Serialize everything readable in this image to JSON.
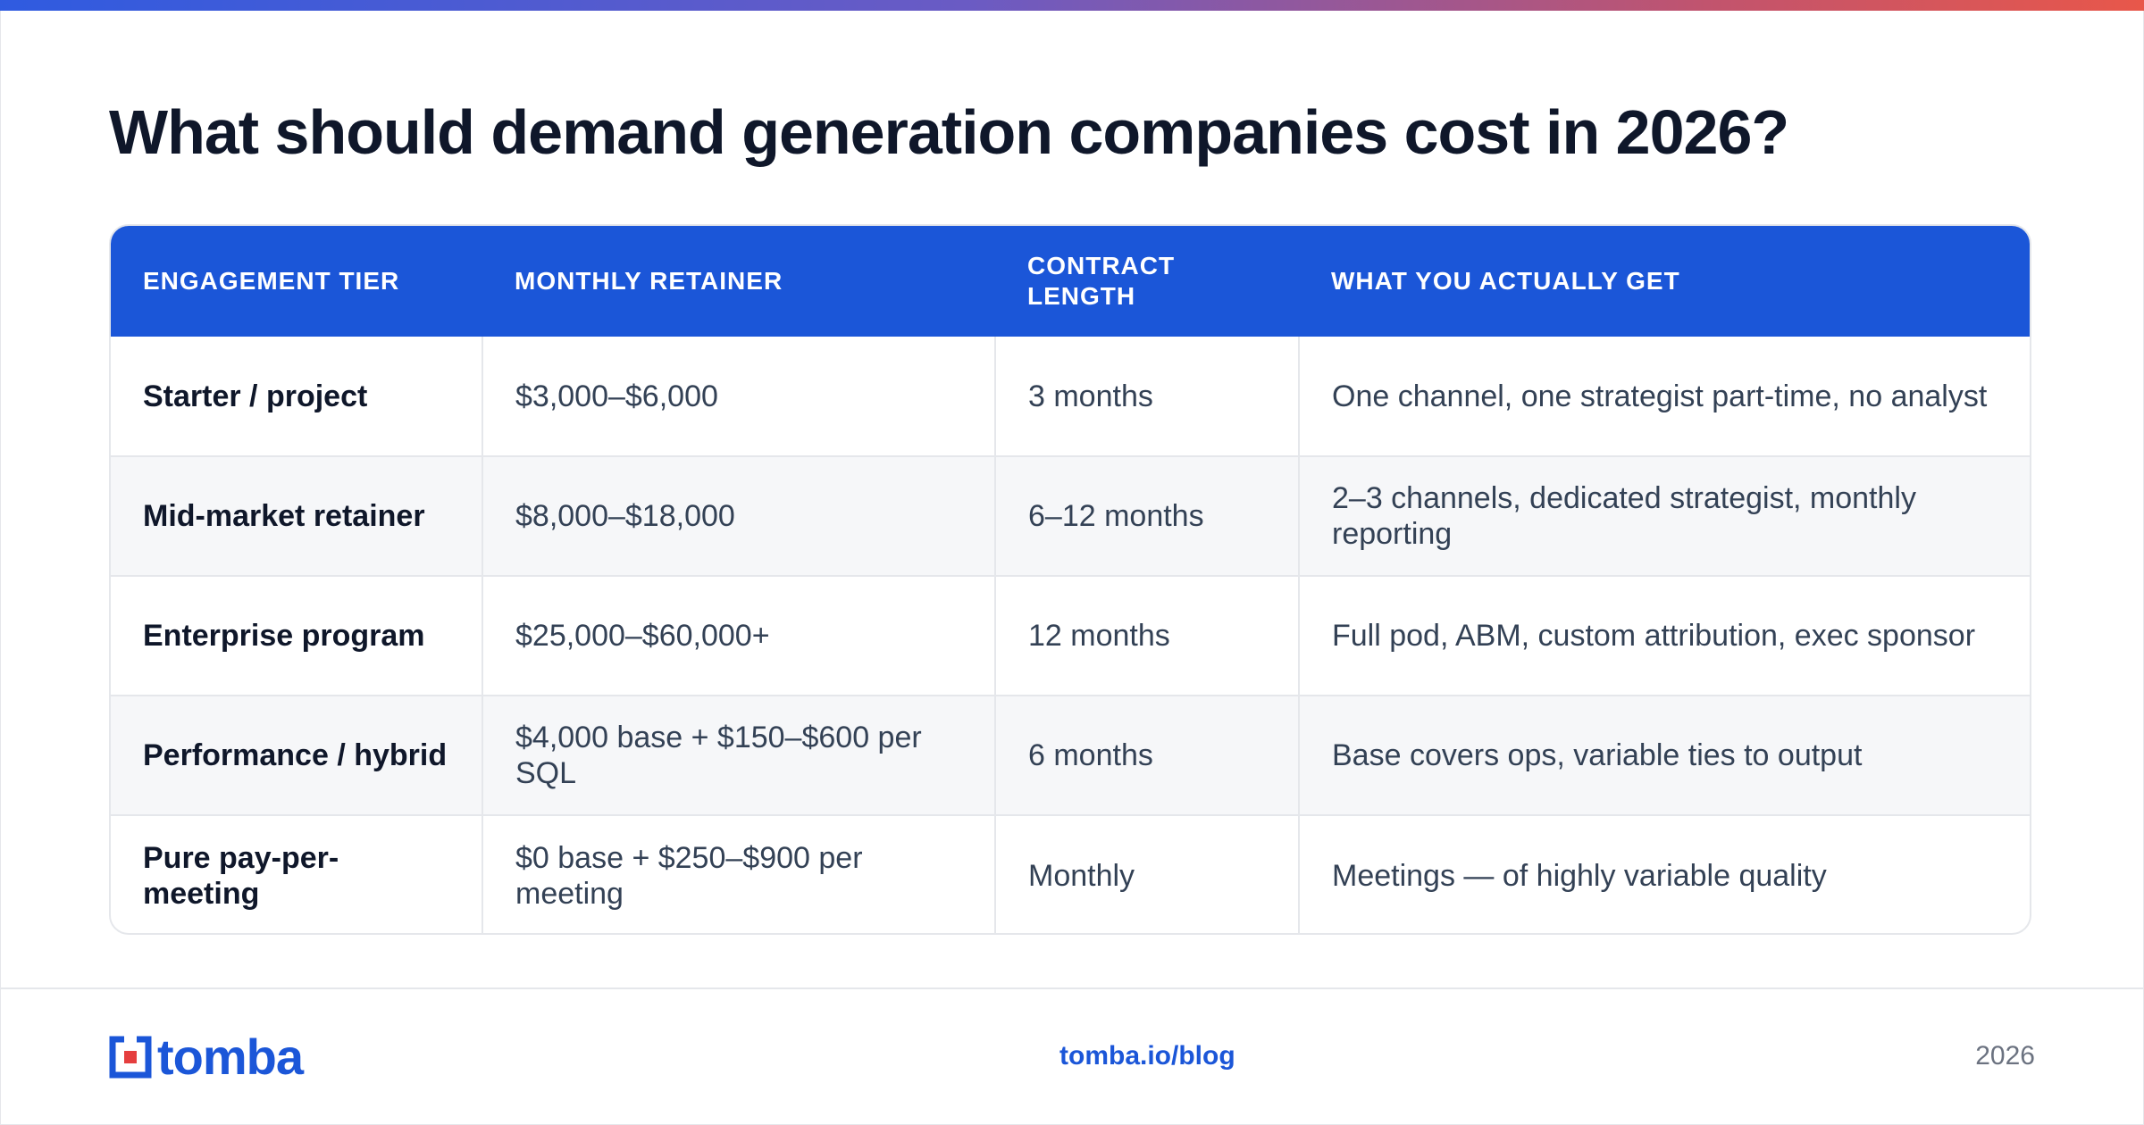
{
  "title": "What should demand generation companies cost in 2026?",
  "table": {
    "headers": [
      "ENGAGEMENT TIER",
      "MONTHLY RETAINER",
      "CONTRACT LENGTH",
      "WHAT YOU ACTUALLY GET"
    ],
    "rows": [
      [
        "Starter / project",
        "$3,000–$6,000",
        "3 months",
        "One channel, one strategist part-time, no analyst"
      ],
      [
        "Mid-market retainer",
        "$8,000–$18,000",
        "6–12 months",
        "2–3 channels, dedicated strategist, monthly reporting"
      ],
      [
        "Enterprise program",
        "$25,000–$60,000+",
        "12 months",
        "Full pod, ABM, custom attribution, exec sponsor"
      ],
      [
        "Performance / hybrid",
        "$4,000 base + $150–$600 per SQL",
        "6 months",
        "Base covers ops, variable ties to output"
      ],
      [
        "Pure pay-per-meeting",
        "$0 base + $250–$900 per meeting",
        "Monthly",
        "Meetings — of highly variable quality"
      ]
    ]
  },
  "footer": {
    "logo_text": "tomba",
    "url": "tomba.io/blog",
    "year": "2026"
  },
  "colors": {
    "accent": "#1b56d8",
    "logo_red": "#e53e3e",
    "gradient_start": "#2f5be0",
    "gradient_end": "#e8574a"
  }
}
